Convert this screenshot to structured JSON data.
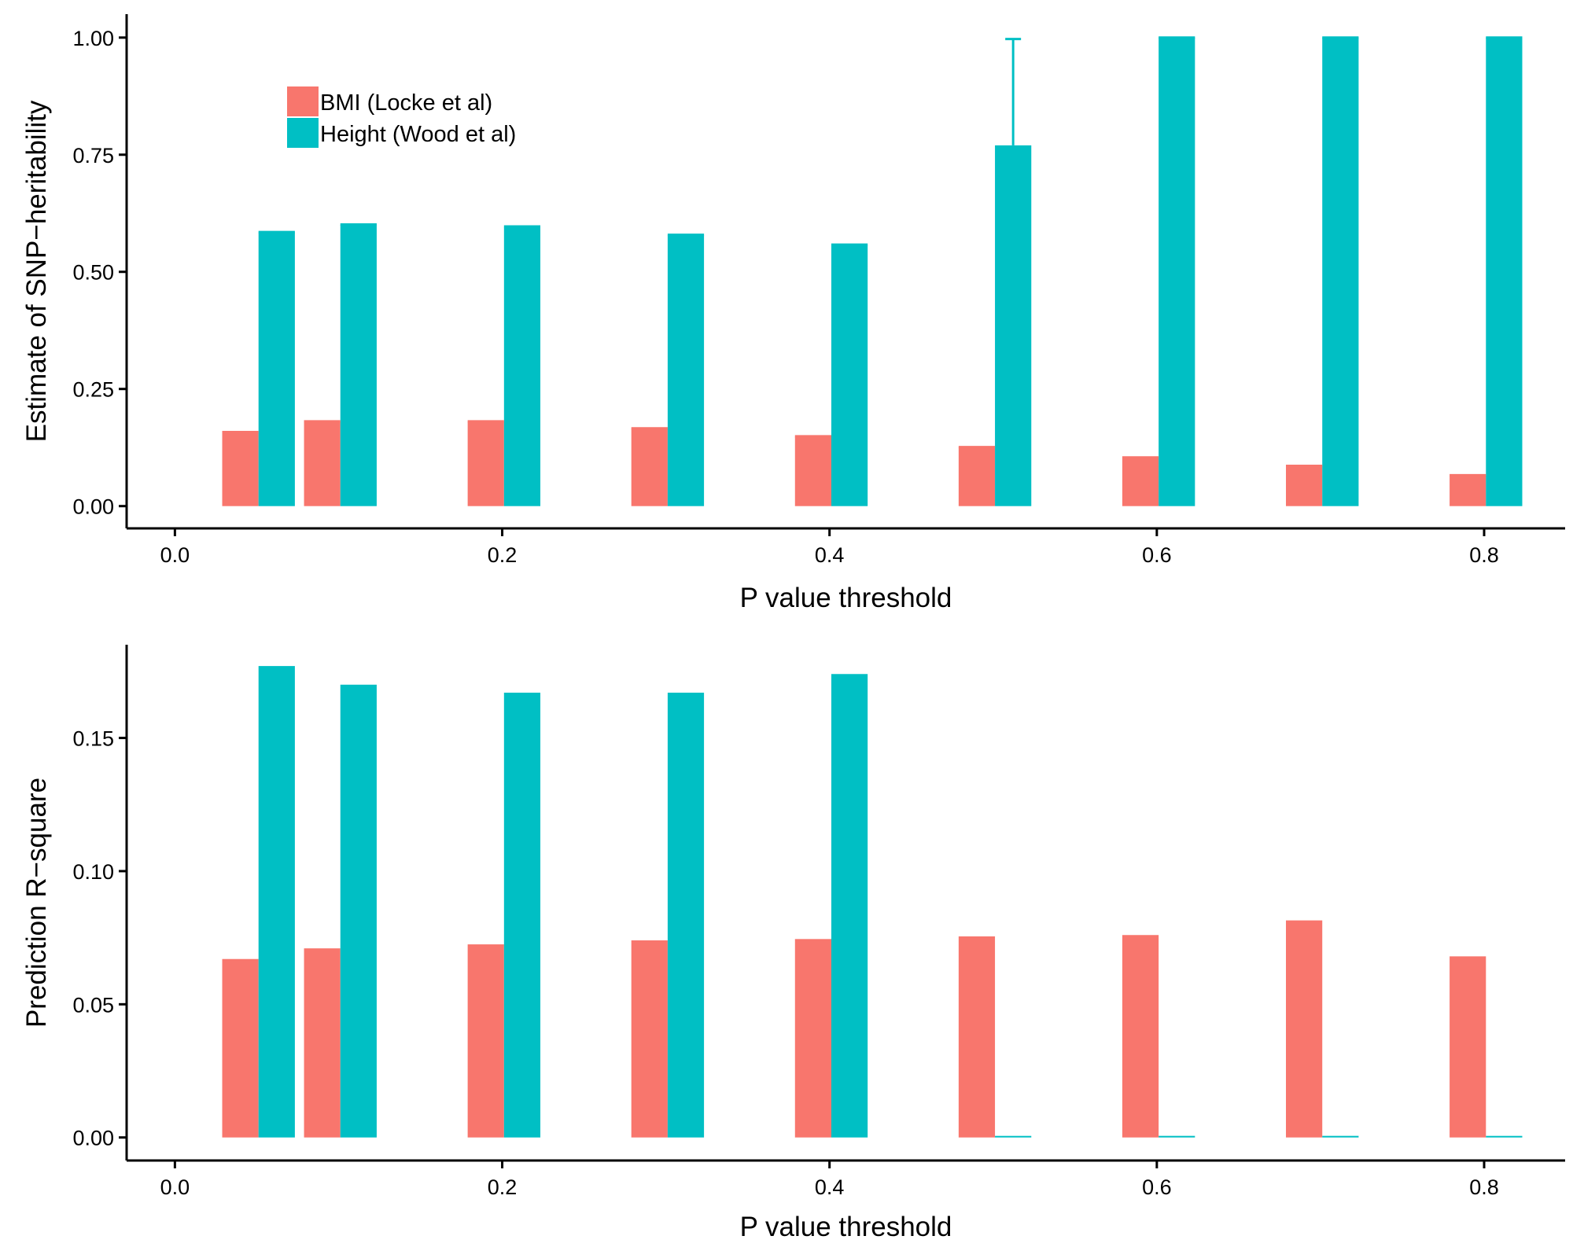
{
  "colors": {
    "bmi": "#F8766D",
    "height": "#00BFC4",
    "axis": "#000000"
  },
  "chart_data": [
    {
      "type": "bar",
      "id": "heritability",
      "xlabel": "P value threshold",
      "ylabel": "Estimate of SNP−heritability",
      "xlim": [
        -0.0295,
        0.8495
      ],
      "ylim": [
        -0.0475,
        1.05
      ],
      "x_ticks": [
        0.0,
        0.2,
        0.4,
        0.6,
        0.8
      ],
      "x_tick_labels": [
        "0.0",
        "0.2",
        "0.4",
        "0.6",
        "0.8"
      ],
      "y_ticks": [
        0.0,
        0.25,
        0.5,
        0.75,
        1.0
      ],
      "y_tick_labels": [
        "0.00",
        "0.25",
        "0.50",
        "0.75",
        "1.00"
      ],
      "bar_half_width": 0.0111,
      "legend": [
        "BMI (Locke et al)",
        "Height (Wood et al)"
      ],
      "legend_position": "top-left",
      "series": [
        {
          "name": "BMI (Locke et al)",
          "color": "#F8766D",
          "x": [
            0.04,
            0.09,
            0.19,
            0.29,
            0.39,
            0.49,
            0.59,
            0.69,
            0.79
          ],
          "values": [
            0.157,
            0.18,
            0.18,
            0.165,
            0.148,
            0.125,
            0.103,
            0.085,
            0.065
          ],
          "error_upper": [
            0.158,
            0.181,
            0.181,
            0.166,
            0.149,
            0.126,
            0.104,
            0.086,
            0.066
          ]
        },
        {
          "name": "Height (Wood et al)",
          "color": "#00BFC4",
          "x": [
            0.0622,
            0.1122,
            0.2122,
            0.3122,
            0.4122,
            0.5122,
            0.6122,
            0.7122,
            0.8122
          ],
          "values": [
            0.584,
            0.6,
            0.595,
            0.578,
            0.557,
            0.77,
            1.0,
            1.0,
            1.0
          ],
          "error_upper": [
            0.585,
            0.601,
            0.597,
            0.579,
            0.558,
            0.997,
            1.0,
            1.0,
            1.0
          ]
        }
      ]
    },
    {
      "type": "bar",
      "id": "prediction",
      "xlabel": "P value threshold",
      "ylabel": "Prediction R−square",
      "xlim": [
        -0.0295,
        0.8495
      ],
      "ylim": [
        -0.00865,
        0.185
      ],
      "x_ticks": [
        0.0,
        0.2,
        0.4,
        0.6,
        0.8
      ],
      "x_tick_labels": [
        "0.0",
        "0.2",
        "0.4",
        "0.6",
        "0.8"
      ],
      "y_ticks": [
        0.0,
        0.05,
        0.1,
        0.15
      ],
      "y_tick_labels": [
        "0.00",
        "0.05",
        "0.10",
        "0.15"
      ],
      "bar_half_width": 0.0111,
      "series": [
        {
          "name": "BMI (Locke et al)",
          "color": "#F8766D",
          "x": [
            0.04,
            0.09,
            0.19,
            0.29,
            0.39,
            0.49,
            0.59,
            0.69,
            0.79
          ],
          "values": [
            0.067,
            0.071,
            0.0725,
            0.074,
            0.0745,
            0.0755,
            0.076,
            0.0815,
            0.068
          ]
        },
        {
          "name": "Height (Wood et al)",
          "color": "#00BFC4",
          "x": [
            0.0622,
            0.1122,
            0.2122,
            0.3122,
            0.4122,
            0.5122,
            0.6122,
            0.7122,
            0.8122
          ],
          "values": [
            0.177,
            0.17,
            0.167,
            0.167,
            0.174,
            0.0002,
            0.0006,
            0.0006,
            0.0002
          ]
        }
      ]
    }
  ]
}
